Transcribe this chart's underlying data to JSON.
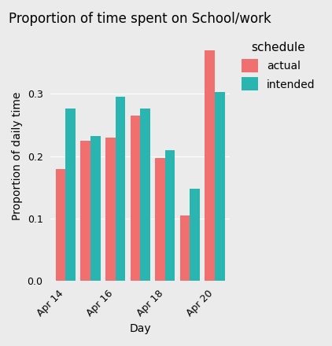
{
  "title": "Proportion of time spent on School/work",
  "xlabel": "Day",
  "ylabel": "Proportion of daily time",
  "actual_color": "#F07070",
  "intended_color": "#2BB5B0",
  "bg_color": "#EBEBEB",
  "ylim": [
    0.0,
    0.4
  ],
  "yticks": [
    0.0,
    0.1,
    0.2,
    0.3
  ],
  "ytick_labels": [
    "0.0",
    "0.1",
    "0.2",
    "0.3"
  ],
  "legend_title": "schedule",
  "legend_labels": [
    "actual",
    "intended"
  ],
  "n_groups": 7,
  "actual_data": [
    0.18,
    0.225,
    0.23,
    0.265,
    0.197,
    0.105,
    0.37
  ],
  "intended_data": [
    0.277,
    0.232,
    0.295,
    0.277,
    0.21,
    0.148,
    0.303
  ],
  "xtick_positions": [
    0,
    2,
    4,
    6
  ],
  "xtick_labels": [
    "Apr 14",
    "Apr 16",
    "Apr 18",
    "Apr 20"
  ],
  "bar_width": 0.4
}
